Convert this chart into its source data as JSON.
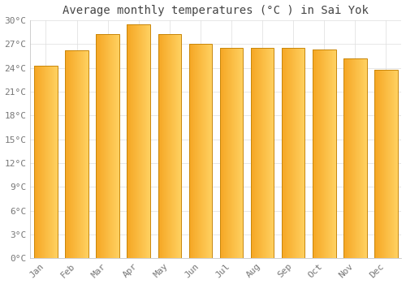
{
  "months": [
    "Jan",
    "Feb",
    "Mar",
    "Apr",
    "May",
    "Jun",
    "Jul",
    "Aug",
    "Sep",
    "Oct",
    "Nov",
    "Dec"
  ],
  "values": [
    24.3,
    26.2,
    28.3,
    29.5,
    28.3,
    27.0,
    26.5,
    26.5,
    26.5,
    26.3,
    25.2,
    23.8
  ],
  "bar_color_left": "#F5A623",
  "bar_color_right": "#FFD060",
  "bar_edge_color": "#C8860A",
  "title": "Average monthly temperatures (°C ) in Sai Yok",
  "ylim": [
    0,
    30
  ],
  "yticks": [
    0,
    3,
    6,
    9,
    12,
    15,
    18,
    21,
    24,
    27,
    30
  ],
  "ytick_labels": [
    "0°C",
    "3°C",
    "6°C",
    "9°C",
    "12°C",
    "15°C",
    "18°C",
    "21°C",
    "24°C",
    "27°C",
    "30°C"
  ],
  "bg_color": "#FFFFFF",
  "grid_color": "#DDDDDD",
  "title_fontsize": 10,
  "tick_fontsize": 8,
  "title_color": "#444444",
  "tick_color": "#777777",
  "bar_width": 0.75,
  "figsize": [
    5.0,
    3.5
  ],
  "dpi": 100
}
